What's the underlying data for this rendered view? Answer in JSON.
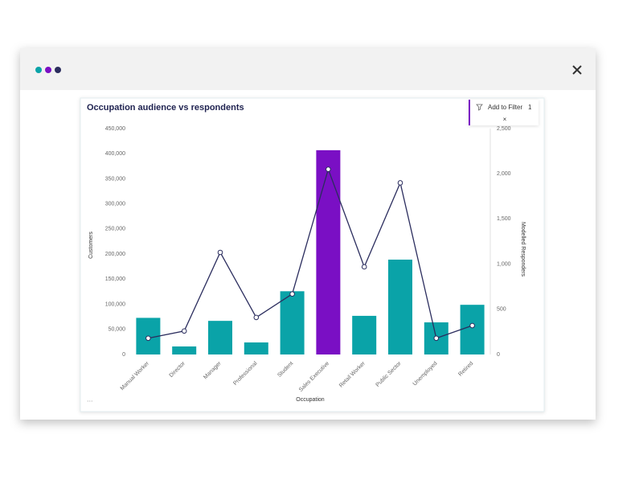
{
  "filter_popup": {
    "label": "Add to Filter",
    "count": "1"
  },
  "chart_data": {
    "type": "bar_line",
    "title": "Occupation audience vs respondents",
    "x_label": "Occupation",
    "y_label": "Customers",
    "y2_label": "Modelled Responders",
    "categories": [
      "Manual Worker",
      "Director",
      "Manager",
      "Professional",
      "Student",
      "Sales Executive",
      "Retail Worker",
      "Public Sector",
      "Unemployed",
      "Retired"
    ],
    "series": [
      {
        "type": "bar",
        "color": "#0aa3a8",
        "colors": [
          "#0aa3a8",
          "#0aa3a8",
          "#0aa3a8",
          "#0aa3a8",
          "#0aa3a8",
          "#7a0fc4",
          "#0aa3a8",
          "#0aa3a8",
          "#0aa3a8",
          "#0aa3a8"
        ],
        "values": [
          73000,
          16000,
          67000,
          24000,
          126000,
          407000,
          77000,
          189000,
          64000,
          99000
        ]
      },
      {
        "type": "line",
        "axis": "y2",
        "color": "#2b2d5e",
        "values": [
          180,
          260,
          1130,
          410,
          670,
          2050,
          970,
          1900,
          180,
          320
        ]
      }
    ],
    "ylim": [
      0,
      450000
    ],
    "yticks": [
      0,
      {
        "value": 50000,
        "label": "50,000"
      },
      {
        "value": 100000,
        "label": "100,000"
      },
      {
        "value": 150000,
        "label": "150,000"
      },
      {
        "value": 200000,
        "label": "200,000"
      },
      {
        "value": 250000,
        "label": "250,000"
      },
      {
        "value": 300000,
        "label": "300,000"
      },
      {
        "value": 350000,
        "label": "350,000"
      },
      {
        "value": 400000,
        "label": "400,000"
      },
      {
        "value": 450000,
        "label": "450,000"
      }
    ],
    "y2lim": [
      0,
      2500
    ],
    "y2ticks": [
      0,
      500,
      {
        "value": 1000,
        "label": "1,000"
      },
      {
        "value": 1500,
        "label": "1,500"
      },
      {
        "value": 2000,
        "label": "2,000"
      },
      {
        "value": 2500,
        "label": "2,500"
      }
    ],
    "grid": false
  }
}
